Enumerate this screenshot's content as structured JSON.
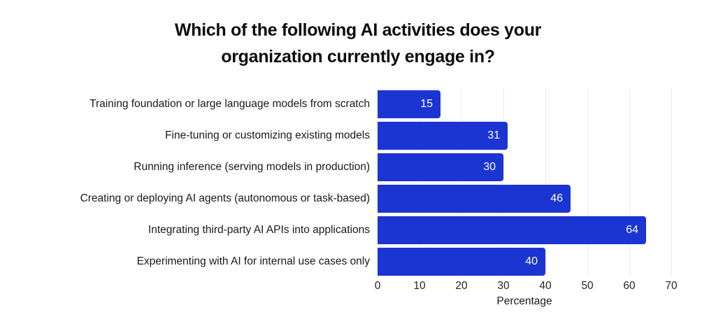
{
  "chart_data": {
    "type": "bar",
    "orientation": "horizontal",
    "title": "Which of the following AI activities does your organization currently engage in?",
    "categories": [
      "Training foundation or large language models from scratch",
      "Fine-tuning or customizing existing models",
      "Running inference (serving models in production)",
      "Creating or deploying AI agents (autonomous or task-based)",
      "Integrating third-party AI APIs into applications",
      "Experimenting with AI for internal use cases only"
    ],
    "values": [
      15,
      31,
      30,
      46,
      64,
      40
    ],
    "value_labels": [
      "15",
      "31",
      "30",
      "46",
      "64",
      "40"
    ],
    "xlabel": "Percentage",
    "x_ticks": [
      0,
      10,
      20,
      30,
      40,
      50,
      60,
      70
    ],
    "xlim": [
      0,
      70
    ],
    "grid": "vertical-only",
    "legend": "none",
    "colors": {
      "bar": "#1b35d3",
      "value_label": "#ffffff",
      "gridline": "#ebebeb",
      "title_text": "#0d0d0d",
      "label_text": "#1a1a1a",
      "background": "#ffffff"
    }
  }
}
